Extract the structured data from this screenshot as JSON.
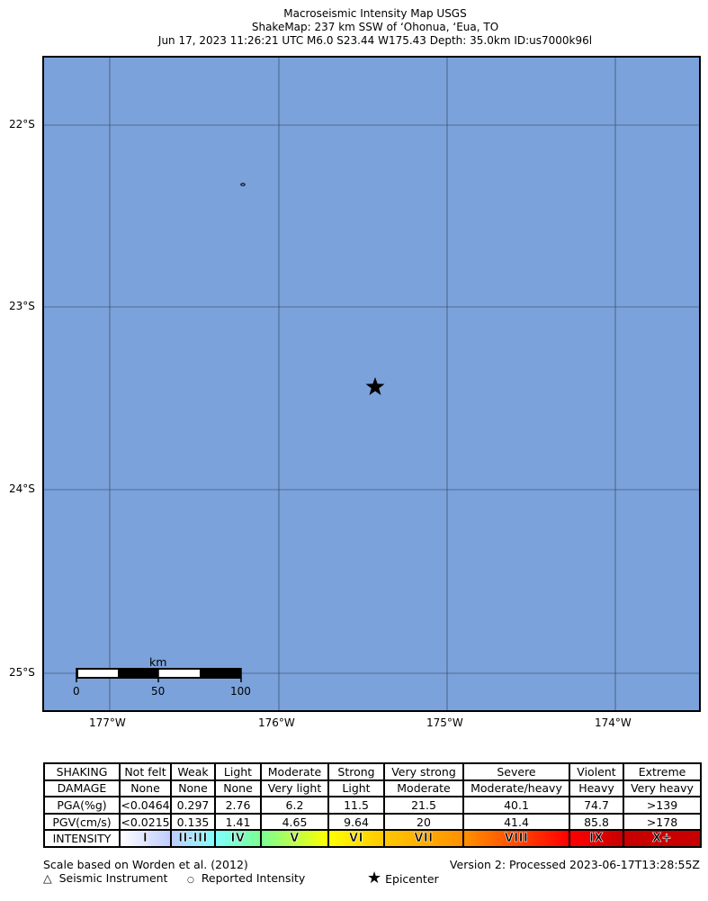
{
  "title": {
    "line1": "Macroseismic Intensity Map USGS",
    "line2": "ShakeMap: 237 km SSW of ‘Ohonua, ‘Eua, TO",
    "line3": "Jun 17, 2023 11:26:21 UTC M6.0 S23.44 W175.43 Depth: 35.0km ID:us7000k96l"
  },
  "map": {
    "ocean_color": "#7ba2da",
    "lat_labels": [
      "22°S",
      "23°S",
      "24°S",
      "25°S"
    ],
    "lon_labels": [
      "177°W",
      "176°W",
      "175°W",
      "174°W"
    ],
    "epicenter": {
      "lat": -23.44,
      "lon": -175.43,
      "icon": "star-icon"
    },
    "scalebar": {
      "unit": "km",
      "labels": [
        "0",
        "50",
        "100"
      ]
    }
  },
  "legend": {
    "row_labels": [
      "SHAKING",
      "DAMAGE",
      "PGA(%g)",
      "PGV(cm/s)",
      "INTENSITY"
    ],
    "shaking": [
      "Not felt",
      "Weak",
      "Light",
      "Moderate",
      "Strong",
      "Very strong",
      "Severe",
      "Violent",
      "Extreme"
    ],
    "damage": [
      "None",
      "None",
      "None",
      "Very light",
      "Light",
      "Moderate",
      "Moderate/heavy",
      "Heavy",
      "Very heavy"
    ],
    "pga": [
      "<0.0464",
      "0.297",
      "2.76",
      "6.2",
      "11.5",
      "21.5",
      "40.1",
      "74.7",
      ">139"
    ],
    "pgv": [
      "<0.0215",
      "0.135",
      "1.41",
      "4.65",
      "9.64",
      "20",
      "41.4",
      "85.8",
      ">178"
    ],
    "intensity": [
      "I",
      "II-III",
      "IV",
      "V",
      "VI",
      "VII",
      "VIII",
      "IX",
      "X+"
    ],
    "intensity_colors": [
      "#ffffff",
      "#bfccff",
      "#80ffff",
      "#7aff93",
      "#ffff00",
      "#ffc800",
      "#ff9100",
      "#ff0000",
      "#c80000"
    ]
  },
  "footer": {
    "scale_note": "Scale based on Worden et al. (2012)",
    "version": "Version 2: Processed 2023-06-17T13:28:55Z",
    "seismic_instrument": "Seismic Instrument",
    "reported_intensity": "Reported Intensity",
    "epicenter": "Epicenter"
  }
}
